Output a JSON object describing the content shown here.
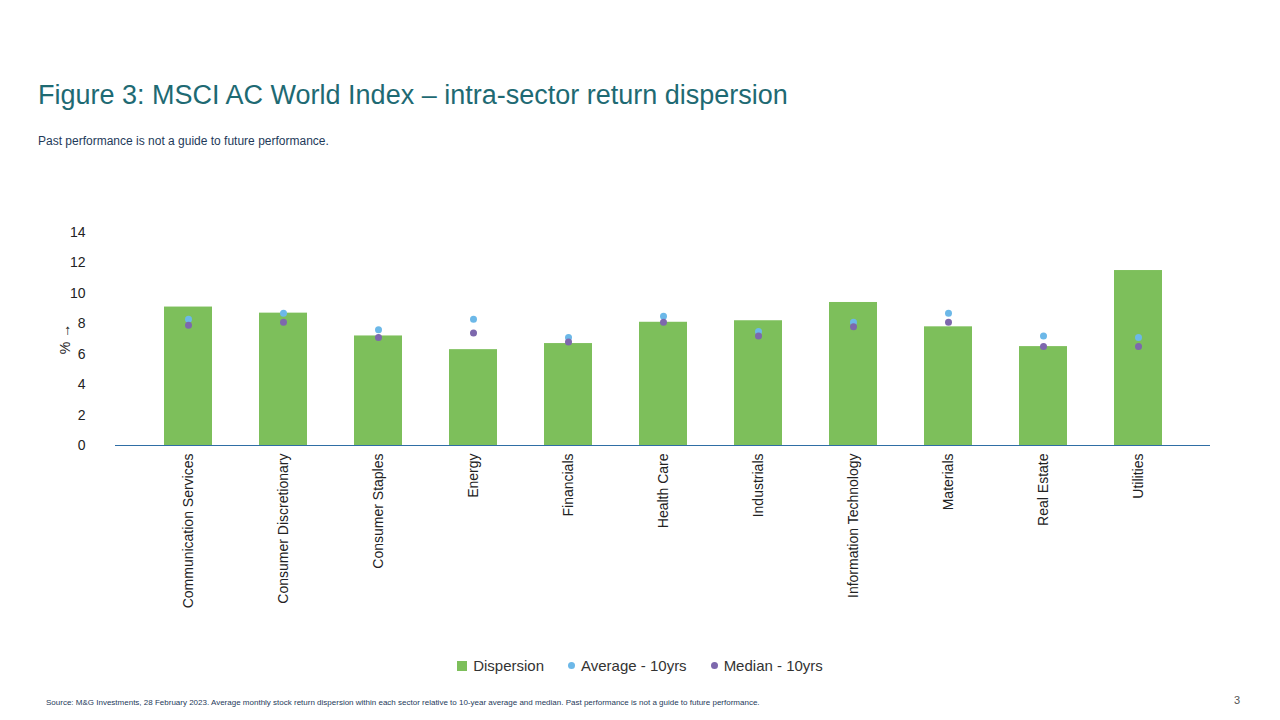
{
  "chart_data": {
    "type": "bar",
    "title": "Figure 3: MSCI AC World Index – intra-sector return dispersion",
    "subtitle": "Past performance is not a guide to future performance.",
    "source": "Source: M&G Investments, 28 February 2023. Average monthly stock return dispersion within each sector relative to 10-year average and median. Past performance is not a guide to future performance.",
    "page_number": "3",
    "y_label": "%",
    "categories": [
      "Communication Services",
      "Consumer Discretionary",
      "Consumer Staples",
      "Energy",
      "Financials",
      "Health Care",
      "Industrials",
      "Information Technology",
      "Materials",
      "Real Estate",
      "Utilities"
    ],
    "series": [
      {
        "name": "Dispersion",
        "type": "bar",
        "color": "#7dbf5b",
        "values": [
          9.1,
          8.7,
          7.2,
          6.3,
          6.7,
          8.1,
          8.2,
          9.4,
          7.8,
          6.5,
          11.5
        ]
      },
      {
        "name": "Average - 10yrs",
        "type": "scatter",
        "marker": "circle",
        "color": "#6cb8e8",
        "values": [
          8.3,
          8.7,
          7.6,
          8.3,
          7.1,
          8.5,
          7.5,
          8.1,
          8.7,
          7.2,
          7.1
        ]
      },
      {
        "name": "Median - 10yrs",
        "type": "scatter",
        "marker": "circle",
        "color": "#7d68ad",
        "values": [
          7.9,
          8.1,
          7.1,
          7.4,
          6.8,
          8.1,
          7.2,
          7.8,
          8.1,
          6.5,
          6.5
        ]
      }
    ],
    "ylim": [
      0,
      14
    ],
    "yticks": [
      0,
      2,
      4,
      6,
      8,
      10,
      12,
      14
    ],
    "grid": false,
    "legend": "bottom"
  }
}
